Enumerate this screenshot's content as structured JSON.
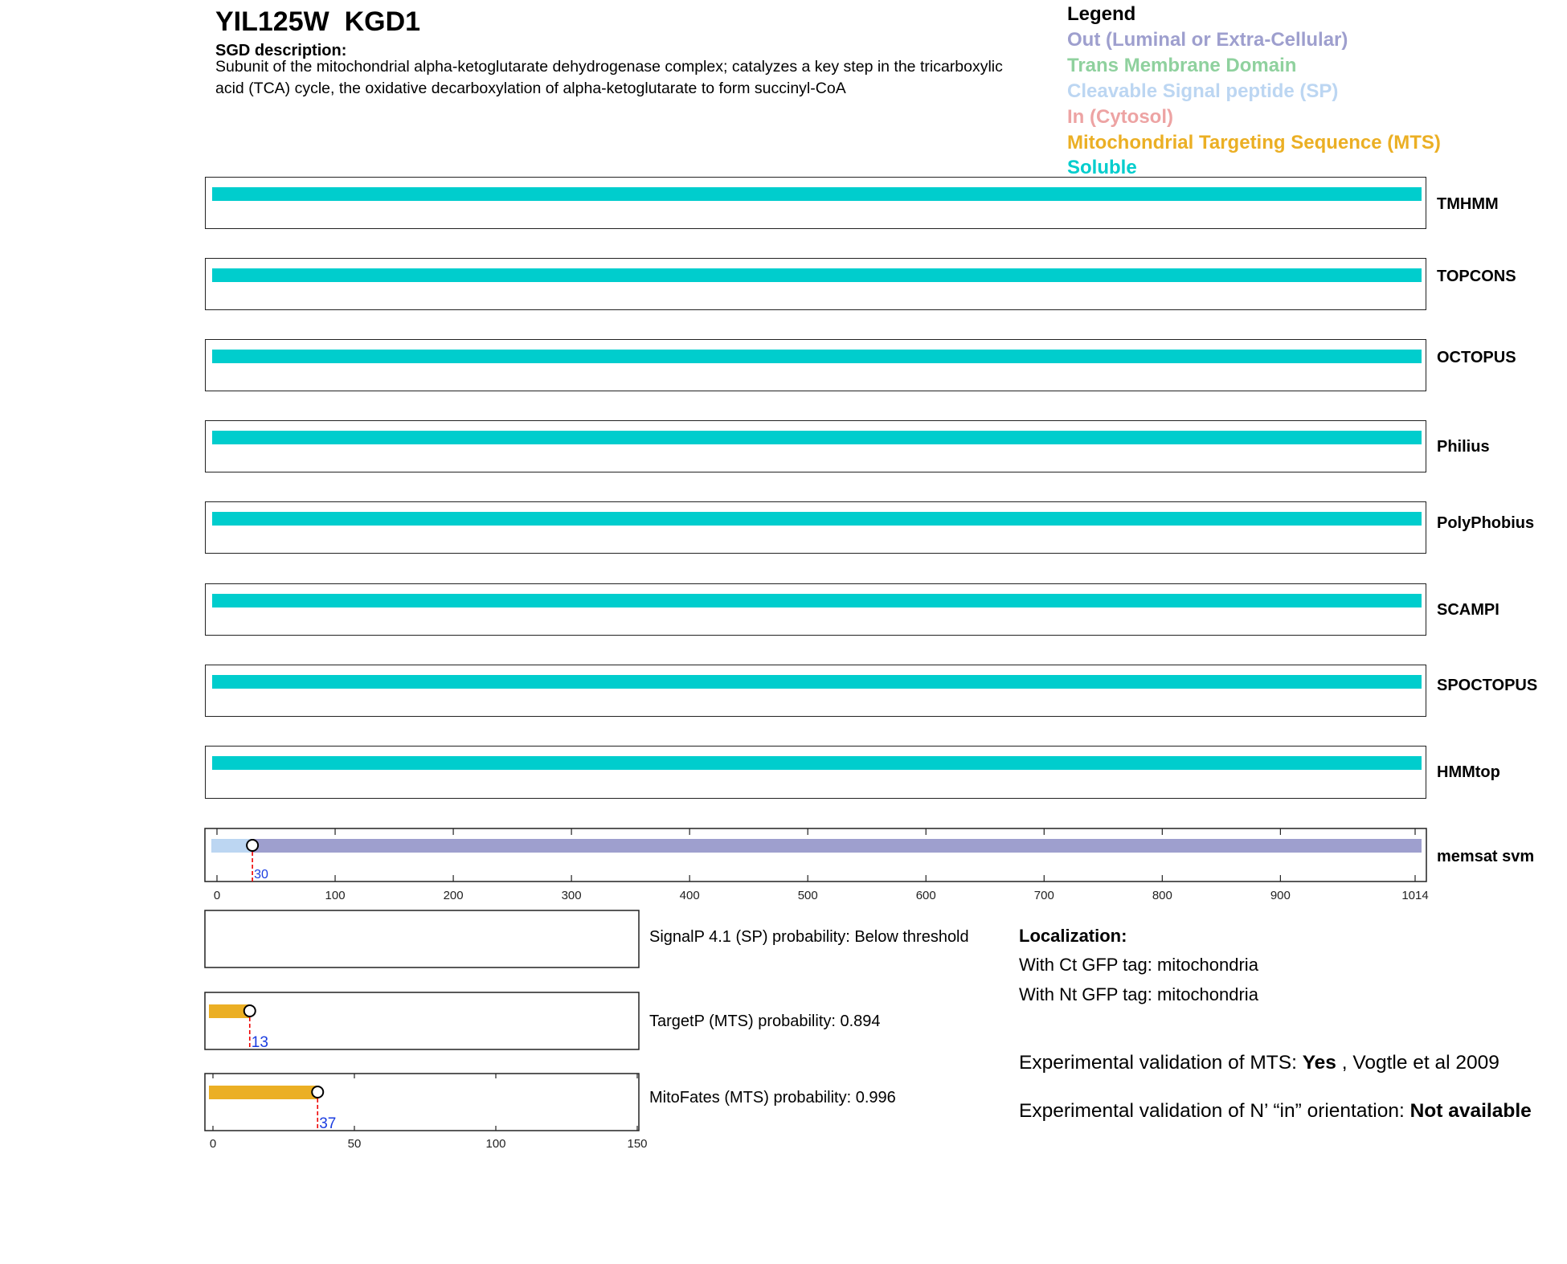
{
  "header": {
    "title": "YIL125W  KGD1",
    "sgd_label": "SGD description:",
    "sgd_text": "Subunit of the mitochondrial alpha-ketoglutarate dehydrogenase complex; catalyzes a key step in the tricarboxylic acid (TCA) cycle, the oxidative decarboxylation of alpha-ketoglutarate to form succinyl-CoA"
  },
  "legend": {
    "title": "Legend",
    "items": [
      {
        "label": "Out (Luminal or Extra-Cellular)",
        "color": "#9e9fce"
      },
      {
        "label": "Trans Membrane Domain",
        "color": "#8fd19e"
      },
      {
        "label": "Cleavable Signal peptide (SP)",
        "color": "#bcd6f2"
      },
      {
        "label": "In (Cytosol)",
        "color": "#eda3a3"
      },
      {
        "label": "Mitochondrial Targeting Sequence (MTS)",
        "color": "#ebaf24"
      },
      {
        "label": "Soluble",
        "color": "#00cdcd"
      }
    ]
  },
  "tracks": [
    {
      "name": "TMHMM",
      "state": "Soluble",
      "color": "#00cdcd"
    },
    {
      "name": "TOPCONS",
      "state": "Soluble",
      "color": "#00cdcd"
    },
    {
      "name": "OCTOPUS",
      "state": "Soluble",
      "color": "#00cdcd"
    },
    {
      "name": "Philius",
      "state": "Soluble",
      "color": "#00cdcd"
    },
    {
      "name": "PolyPhobius",
      "state": "Soluble",
      "color": "#00cdcd"
    },
    {
      "name": "SCAMPI",
      "state": "Soluble",
      "color": "#00cdcd"
    },
    {
      "name": "SPOCTOPUS",
      "state": "Soluble",
      "color": "#00cdcd"
    },
    {
      "name": "HMMtop",
      "state": "Soluble",
      "color": "#00cdcd"
    }
  ],
  "chart_data": [
    {
      "type": "bar",
      "name": "memsat svm",
      "xlim": [
        0,
        1014
      ],
      "xticks": [
        "0",
        "100",
        "200",
        "300",
        "400",
        "500",
        "600",
        "700",
        "800",
        "900",
        "1014"
      ],
      "segments": [
        {
          "start": 0,
          "end": 30,
          "state": "Cleavable Signal peptide (SP)",
          "color": "#bcd6f2"
        },
        {
          "start": 30,
          "end": 1014,
          "state": "Out (Luminal or Extra-Cellular)",
          "color": "#9e9fce"
        }
      ],
      "marker": {
        "x": 30,
        "label": "30"
      }
    },
    {
      "type": "bar",
      "name": "SignalP 4.1",
      "label": "SignalP 4.1 (SP) probability: Below threshold",
      "xlim": [
        0,
        150
      ],
      "segments": []
    },
    {
      "type": "bar",
      "name": "TargetP",
      "label": "TargetP (MTS) probability: 0.894",
      "xlim": [
        0,
        150
      ],
      "segments": [
        {
          "start": 0,
          "end": 13,
          "color": "#ebaf24"
        }
      ],
      "marker": {
        "x": 13,
        "label": "13"
      }
    },
    {
      "type": "bar",
      "name": "MitoFates",
      "label": "MitoFates (MTS) probability: 0.996",
      "xlim": [
        0,
        150
      ],
      "xticks": [
        "0",
        "50",
        "100",
        "150"
      ],
      "segments": [
        {
          "start": 0,
          "end": 37,
          "color": "#ebaf24"
        }
      ],
      "marker": {
        "x": 37,
        "label": "37"
      }
    }
  ],
  "localization": {
    "title": "Localization:",
    "ct": "With Ct GFP tag: mitochondria",
    "nt": "With Nt GFP tag: mitochondria"
  },
  "validation": {
    "mts_prefix": "Experimental validation of MTS: ",
    "mts_value": "Yes",
    "mts_suffix": " , Vogtle et al 2009",
    "orient_prefix": "Experimental validation of N’ “in” orientation: ",
    "orient_value": "Not available"
  }
}
